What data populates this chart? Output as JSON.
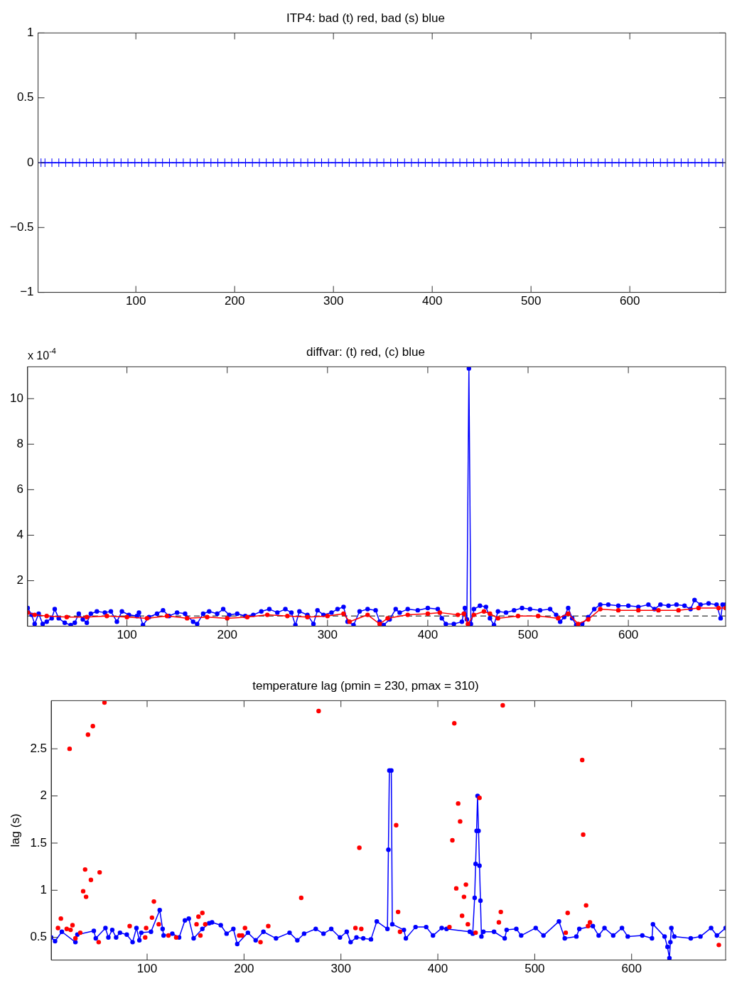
{
  "chart_data": [
    {
      "type": "line",
      "title": "ITP4: bad (t) red, bad (s) blue",
      "xlim": [
        1,
        697
      ],
      "xticks": [
        100,
        200,
        300,
        400,
        500,
        600
      ],
      "ylim": [
        -1,
        1
      ],
      "yticks": [
        {
          "value": -1,
          "label": "−1"
        },
        {
          "value": -0.5,
          "label": "−0.5"
        },
        0,
        0.5,
        1
      ],
      "grid": false,
      "legend": false,
      "series": [
        {
          "type": "line",
          "marker": "cross",
          "color": "#0000ff",
          "x": [
            4,
            8,
            15,
            22,
            29,
            36,
            43,
            50,
            57,
            64,
            71,
            78,
            85,
            92,
            99,
            106,
            113,
            120,
            127,
            134,
            141,
            148,
            155,
            162,
            169,
            176,
            183,
            190,
            197,
            204,
            211,
            218,
            225,
            232,
            239,
            246,
            253,
            260,
            267,
            274,
            281,
            288,
            295,
            302,
            309,
            316,
            323,
            330,
            337,
            344,
            351,
            358,
            365,
            372,
            379,
            386,
            393,
            400,
            407,
            414,
            421,
            428,
            435,
            442,
            449,
            456,
            463,
            470,
            477,
            484,
            491,
            498,
            505,
            512,
            519,
            526,
            533,
            540,
            547,
            554,
            561,
            568,
            575,
            582,
            589,
            596,
            603,
            610,
            617,
            624,
            631,
            638,
            645,
            652,
            659,
            666,
            673,
            680,
            687,
            694
          ],
          "values": [
            0,
            0,
            0,
            0,
            0,
            0,
            0,
            0,
            0,
            0,
            0,
            0,
            0,
            0,
            0,
            0,
            0,
            0,
            0,
            0,
            0,
            0,
            0,
            0,
            0,
            0,
            0,
            0,
            0,
            0,
            0,
            0,
            0,
            0,
            0,
            0,
            0,
            0,
            0,
            0,
            0,
            0,
            0,
            0,
            0,
            0,
            0,
            0,
            0,
            0,
            0,
            0,
            0,
            0,
            0,
            0,
            0,
            0,
            0,
            0,
            0,
            0,
            0,
            0,
            0,
            0,
            0,
            0,
            0,
            0,
            0,
            0,
            0,
            0,
            0,
            0,
            0,
            0,
            0,
            0,
            0,
            0,
            0,
            0,
            0,
            0,
            0,
            0,
            0,
            0,
            0,
            0,
            0,
            0,
            0,
            0,
            0,
            0,
            0,
            0
          ]
        }
      ]
    },
    {
      "type": "line",
      "title": "diffvar: (t) red, (c) blue",
      "annotations": [
        "x 10$^{-4}$"
      ],
      "xlim": [
        1,
        697
      ],
      "xticks": [
        100,
        200,
        300,
        400,
        500,
        600
      ],
      "ylim": [
        0,
        11.4
      ],
      "yticks": [
        2,
        4,
        6,
        8,
        10
      ],
      "grid": false,
      "legend": false,
      "ref_lines": [
        {
          "axis": "y",
          "value": 0.45,
          "color": "#000000",
          "line_style": "dashed"
        }
      ],
      "series": [
        {
          "type": "line",
          "marker": "circle",
          "color": "#ff0000",
          "x": [
            1,
            8,
            20,
            40,
            60,
            80,
            100,
            120,
            140,
            160,
            180,
            200,
            220,
            240,
            260,
            280,
            300,
            316,
            322,
            340,
            352,
            360,
            380,
            400,
            412,
            430,
            436,
            440,
            446,
            456,
            462,
            470,
            490,
            510,
            530,
            540,
            550,
            560,
            572,
            590,
            610,
            630,
            650,
            670,
            690,
            697
          ],
          "values": [
            0.6,
            0.5,
            0.45,
            0.4,
            0.4,
            0.45,
            0.4,
            0.35,
            0.45,
            0.35,
            0.4,
            0.35,
            0.4,
            0.5,
            0.45,
            0.4,
            0.45,
            0.55,
            0.2,
            0.5,
            0.1,
            0.35,
            0.5,
            0.55,
            0.6,
            0.5,
            0.55,
            0.1,
            0.5,
            0.65,
            0.55,
            0.35,
            0.45,
            0.45,
            0.35,
            0.55,
            0.1,
            0.3,
            0.75,
            0.7,
            0.7,
            0.7,
            0.7,
            0.8,
            0.8,
            0.8
          ]
        },
        {
          "type": "line",
          "marker": "circle",
          "color": "#0000ff",
          "x": [
            1,
            5,
            8,
            12,
            16,
            20,
            25,
            28,
            32,
            38,
            44,
            48,
            52,
            56,
            60,
            64,
            70,
            78,
            84,
            90,
            95,
            102,
            110,
            112,
            116,
            122,
            130,
            136,
            142,
            150,
            158,
            166,
            170,
            176,
            182,
            190,
            196,
            202,
            210,
            218,
            226,
            234,
            242,
            250,
            258,
            264,
            268,
            272,
            280,
            286,
            290,
            296,
            304,
            310,
            316,
            320,
            326,
            332,
            340,
            348,
            352,
            356,
            362,
            368,
            372,
            380,
            390,
            400,
            410,
            414,
            418,
            426,
            434,
            437,
            439,
            441,
            443,
            446,
            452,
            458,
            462,
            466,
            470,
            478,
            486,
            494,
            502,
            512,
            522,
            528,
            532,
            536,
            540,
            544,
            548,
            554,
            560,
            566,
            572,
            580,
            590,
            600,
            610,
            620,
            626,
            632,
            640,
            648,
            656,
            662,
            666,
            672,
            680,
            688,
            692,
            694,
            697
          ],
          "values": [
            0.8,
            0.5,
            0.1,
            0.55,
            0.1,
            0.2,
            0.35,
            0.75,
            0.35,
            0.15,
            0.05,
            0.15,
            0.55,
            0.3,
            0.15,
            0.55,
            0.65,
            0.6,
            0.65,
            0.2,
            0.65,
            0.5,
            0.45,
            0.6,
            0.05,
            0.4,
            0.55,
            0.7,
            0.45,
            0.6,
            0.55,
            0.2,
            0.1,
            0.55,
            0.65,
            0.55,
            0.75,
            0.5,
            0.55,
            0.45,
            0.5,
            0.65,
            0.75,
            0.6,
            0.75,
            0.6,
            0.05,
            0.65,
            0.5,
            0.1,
            0.7,
            0.5,
            0.6,
            0.75,
            0.85,
            0.2,
            0.05,
            0.65,
            0.75,
            0.7,
            0.2,
            0.05,
            0.3,
            0.75,
            0.6,
            0.75,
            0.7,
            0.8,
            0.75,
            0.35,
            0.1,
            0.1,
            0.2,
            0.8,
            0.3,
            11.33,
            0.1,
            0.75,
            0.9,
            0.85,
            0.35,
            0.05,
            0.65,
            0.6,
            0.7,
            0.8,
            0.75,
            0.7,
            0.75,
            0.5,
            0.2,
            0.4,
            0.8,
            0.35,
            0.05,
            0.1,
            0.4,
            0.75,
            0.95,
            0.95,
            0.9,
            0.9,
            0.85,
            0.95,
            0.75,
            0.95,
            0.9,
            0.95,
            0.9,
            0.75,
            1.15,
            0.95,
            1.0,
            0.95,
            0.35,
            0.95,
            0.95
          ]
        }
      ]
    },
    {
      "type": "line",
      "title": "temperature lag (pmin = 230, pmax = 310)",
      "ylabel": "lag (s)",
      "xlim": [
        1,
        697
      ],
      "xticks": [
        100,
        200,
        300,
        400,
        500,
        600
      ],
      "ylim": [
        0.26,
        3.01
      ],
      "yticks": [
        0.5,
        1,
        1.5,
        2,
        2.5
      ],
      "grid": false,
      "legend": false,
      "series": [
        {
          "type": "scatter",
          "marker": "circle",
          "color": "#ff0000",
          "x": [
            8,
            11,
            17,
            20,
            21,
            23,
            26,
            31,
            34,
            36,
            37,
            39,
            42,
            44,
            50,
            51,
            56,
            82,
            98,
            99,
            105,
            107,
            112,
            122,
            130,
            151,
            153,
            155,
            157,
            160,
            195,
            198,
            201,
            217,
            225,
            259,
            277,
            315,
            319,
            321,
            357,
            359,
            361,
            412,
            415,
            417,
            419,
            421,
            423,
            425,
            427,
            429,
            431,
            439,
            443,
            463,
            465,
            467,
            532,
            534,
            549,
            550,
            553,
            555,
            557,
            690
          ],
          "values": [
            0.6,
            0.7,
            0.59,
            2.5,
            0.58,
            0.63,
            0.49,
            0.55,
            0.99,
            1.22,
            0.93,
            2.65,
            1.11,
            2.74,
            0.45,
            1.19,
            2.99,
            0.62,
            0.5,
            0.6,
            0.71,
            0.88,
            0.64,
            0.52,
            0.5,
            0.64,
            0.72,
            0.52,
            0.76,
            0.64,
            0.52,
            0.52,
            0.6,
            0.45,
            0.62,
            0.92,
            2.9,
            0.6,
            1.45,
            0.59,
            1.69,
            0.77,
            0.56,
            0.61,
            1.53,
            2.77,
            1.02,
            1.92,
            1.73,
            0.73,
            0.93,
            1.06,
            0.64,
            0.55,
            1.98,
            0.66,
            0.77,
            2.96,
            0.55,
            0.76,
            2.38,
            1.59,
            0.84,
            0.62,
            0.66,
            0.42
          ]
        },
        {
          "type": "line",
          "marker": "circle",
          "color": "#0000ff",
          "x": [
            1,
            5,
            12,
            26,
            28,
            45,
            47,
            57,
            60,
            64,
            68,
            72,
            79,
            85,
            89,
            92,
            94,
            104,
            113,
            116,
            117,
            126,
            133,
            139,
            143,
            148,
            157,
            164,
            167,
            176,
            182,
            189,
            193,
            204,
            212,
            220,
            233,
            247,
            255,
            262,
            274,
            282,
            290,
            299,
            306,
            310,
            316,
            323,
            331,
            337,
            348,
            349,
            350,
            352,
            353,
            365,
            367,
            377,
            388,
            395,
            404,
            409,
            433,
            436,
            438,
            439,
            440,
            441,
            442,
            443,
            444,
            445,
            447,
            458,
            469,
            471,
            481,
            486,
            501,
            509,
            525,
            531,
            543,
            546,
            560,
            566,
            572,
            581,
            590,
            596,
            611,
            621,
            622,
            634,
            637,
            639,
            640,
            641,
            644,
            661,
            671,
            682,
            688,
            697
          ],
          "values": [
            0.5,
            0.46,
            0.56,
            0.45,
            0.53,
            0.57,
            0.49,
            0.6,
            0.5,
            0.58,
            0.5,
            0.55,
            0.53,
            0.45,
            0.6,
            0.47,
            0.55,
            0.56,
            0.79,
            0.59,
            0.52,
            0.54,
            0.5,
            0.68,
            0.7,
            0.49,
            0.59,
            0.65,
            0.66,
            0.63,
            0.54,
            0.59,
            0.43,
            0.55,
            0.47,
            0.56,
            0.49,
            0.55,
            0.47,
            0.54,
            0.59,
            0.54,
            0.59,
            0.5,
            0.56,
            0.45,
            0.5,
            0.49,
            0.48,
            0.67,
            0.59,
            1.43,
            2.27,
            2.27,
            0.64,
            0.58,
            0.49,
            0.61,
            0.61,
            0.52,
            0.6,
            0.59,
            0.56,
            0.54,
            0.92,
            1.28,
            1.63,
            2.0,
            1.63,
            1.26,
            0.89,
            0.51,
            0.56,
            0.56,
            0.49,
            0.58,
            0.59,
            0.52,
            0.6,
            0.52,
            0.67,
            0.49,
            0.51,
            0.59,
            0.62,
            0.52,
            0.6,
            0.52,
            0.6,
            0.51,
            0.52,
            0.49,
            0.64,
            0.51,
            0.4,
            0.28,
            0.45,
            0.6,
            0.51,
            0.49,
            0.51,
            0.6,
            0.52,
            0.6
          ]
        }
      ]
    }
  ]
}
